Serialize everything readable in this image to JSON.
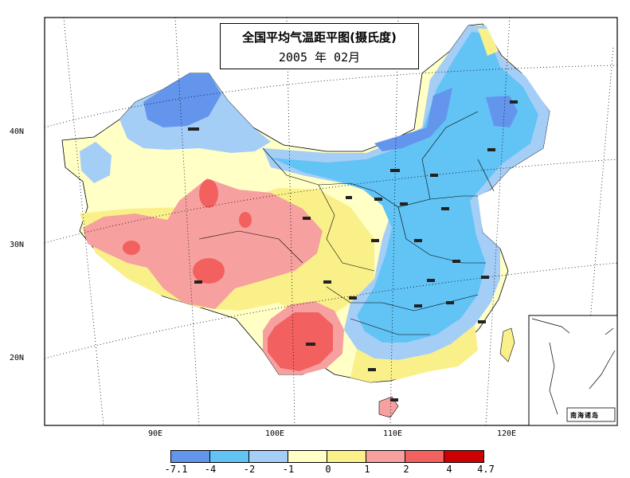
{
  "title": {
    "line1": "全国平均气温距平图(摄氏度)",
    "line2": "2005 年 02月"
  },
  "lat_labels": [
    "40N",
    "30N",
    "20N"
  ],
  "lon_labels": [
    "90E",
    "100E",
    "110E",
    "120E"
  ],
  "legend": {
    "ticks": [
      "-7.1",
      "-4",
      "-2",
      "-1",
      "0",
      "1",
      "2",
      "4",
      "4.7"
    ],
    "colors": [
      "#6495ED",
      "#62C3F5",
      "#A5CEF7",
      "#FFFFC6",
      "#FAF08A",
      "#F7A0A0",
      "#F26160",
      "#CC0000"
    ]
  },
  "inset": {
    "label": "南海诸岛"
  },
  "colors": {
    "cold_strong": "#6495ED",
    "cold": "#62C3F5",
    "cool": "#A5CEF7",
    "neutral": "#FFFFC6",
    "warm_light": "#FAF08A",
    "warm": "#F7A0A0",
    "hot": "#F26160",
    "extreme": "#CC0000"
  }
}
